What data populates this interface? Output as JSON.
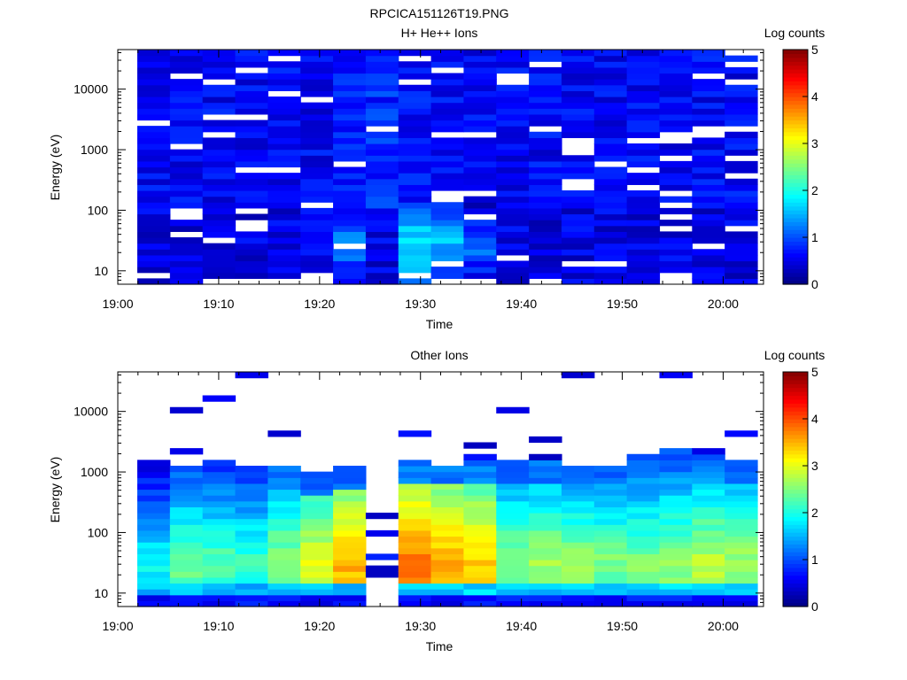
{
  "page_title": "RPCICA151126T19.PNG",
  "chart_data": [
    {
      "type": "heatmap",
      "title": "H+ He++ Ions",
      "xlabel": "Time",
      "ylabel": "Energy (eV)",
      "colorbar_label": "Log counts",
      "colorbar_ticks": [
        "0",
        "1",
        "2",
        "3",
        "4",
        "5"
      ],
      "colorbar_range": [
        0,
        5
      ],
      "y_scale": "log",
      "ylim": [
        6,
        45000
      ],
      "y_ticks": [
        "10",
        "100",
        "1000",
        "10000"
      ],
      "x_ticks": [
        "19:00",
        "19:10",
        "19:20",
        "19:30",
        "19:40",
        "19:50",
        "20:00"
      ],
      "x_range_minutes": [
        0,
        64
      ],
      "time_bins": 19,
      "energy_bins": 40,
      "white_is_zero_counts": true,
      "column_levels_low_energy": [
        0.4,
        0.5,
        0.4,
        0.5,
        0.6,
        0.7,
        1.3,
        0.8,
        1.9,
        1.6,
        1.2,
        0.6,
        0.5,
        0.5,
        0.5,
        0.5,
        0.5,
        0.5,
        0.5
      ],
      "column_levels_high_energy": [
        0.6,
        0.6,
        0.6,
        0.6,
        0.6,
        0.6,
        0.7,
        0.8,
        0.7,
        0.6,
        0.6,
        0.6,
        0.6,
        0.6,
        0.6,
        0.6,
        0.6,
        0.6,
        0.6
      ],
      "grid": false
    },
    {
      "type": "heatmap",
      "title": "Other Ions",
      "xlabel": "Time",
      "ylabel": "Energy (eV)",
      "colorbar_label": "Log counts",
      "colorbar_ticks": [
        "0",
        "1",
        "2",
        "3",
        "4",
        "5"
      ],
      "colorbar_range": [
        0,
        5
      ],
      "y_scale": "log",
      "ylim": [
        6,
        45000
      ],
      "y_ticks": [
        "10",
        "100",
        "1000",
        "10000"
      ],
      "x_ticks": [
        "19:00",
        "19:10",
        "19:20",
        "19:30",
        "19:40",
        "19:50",
        "20:00"
      ],
      "x_range_minutes": [
        0,
        64
      ],
      "time_bins": 19,
      "energy_bins": 40,
      "white_is_zero_counts": true,
      "peak_levels_near_40eV": [
        1.9,
        2.4,
        2.3,
        2.2,
        2.6,
        3.0,
        3.5,
        0.4,
        3.8,
        3.6,
        3.4,
        2.6,
        2.7,
        2.6,
        2.5,
        2.5,
        2.6,
        2.8,
        2.7
      ],
      "bulk_top_energy_eV": [
        1500,
        1400,
        1500,
        1400,
        1300,
        1000,
        1200,
        0,
        1500,
        1400,
        1500,
        1500,
        1500,
        1400,
        1400,
        2200,
        2300,
        2000,
        1600
      ],
      "grid": false
    }
  ]
}
